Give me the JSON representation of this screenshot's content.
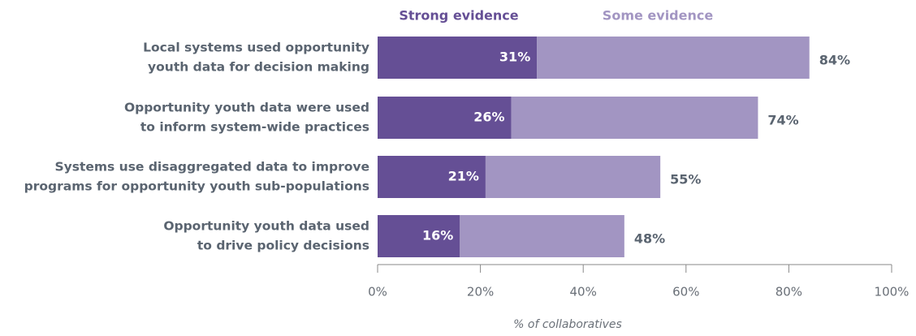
{
  "chart_data": {
    "type": "stacked-barh",
    "categories": [
      [
        "Local systems used opportunity",
        "youth data for decision making"
      ],
      [
        "Opportunity youth data were used",
        "to inform system-wide practices"
      ],
      [
        "Systems use disaggregated data to improve",
        "programs for opportunity youth sub-populations"
      ],
      [
        "Opportunity youth data used",
        "to drive policy decisions"
      ]
    ],
    "series": [
      {
        "name": "Strong evidence",
        "color": "#654f95",
        "values": [
          31,
          26,
          21,
          16
        ],
        "value_labels": [
          "31%",
          "26%",
          "21%",
          "16%"
        ]
      },
      {
        "name": "Some evidence",
        "color": "#a295c2",
        "values": [
          53,
          48,
          34,
          32
        ]
      }
    ],
    "totals": {
      "values": [
        84,
        74,
        55,
        48
      ],
      "value_labels": [
        "84%",
        "74%",
        "55%",
        "48%"
      ]
    },
    "xlim": [
      0,
      100
    ],
    "xticks": [
      {
        "value": 0,
        "label": "0%"
      },
      {
        "value": 20,
        "label": "20%"
      },
      {
        "value": 40,
        "label": "40%"
      },
      {
        "value": 60,
        "label": "60%"
      },
      {
        "value": 80,
        "label": "80%"
      },
      {
        "value": 100,
        "label": "100%"
      }
    ],
    "xlabel": "% of collaboratives"
  }
}
